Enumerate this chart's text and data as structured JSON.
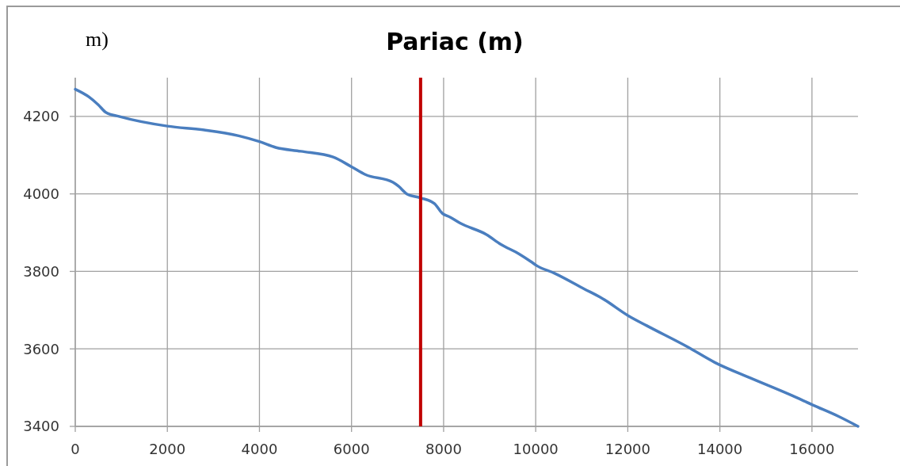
{
  "chart_data": {
    "type": "line",
    "title": "Pariac (m)",
    "annotations": [
      "m)"
    ],
    "x": [
      0,
      300,
      500,
      670,
      950,
      2000,
      2800,
      3550,
      4000,
      4350,
      4900,
      5600,
      6000,
      6300,
      6900,
      7020,
      7200,
      7490,
      7800,
      7970,
      8140,
      8350,
      8930,
      9240,
      9640,
      9900,
      10020,
      10410,
      11050,
      11450,
      12020,
      12410,
      13300,
      13890,
      14660,
      15560,
      16020,
      16590,
      17000
    ],
    "series": [
      {
        "color": "#4a7ebf",
        "values": [
          4270,
          4250,
          4230,
          4210,
          4200,
          4175,
          4165,
          4150,
          4135,
          4120,
          4110,
          4095,
          4070,
          4050,
          4030,
          4020,
          4000,
          3990,
          3975,
          3950,
          3940,
          3925,
          3895,
          3870,
          3845,
          3825,
          3815,
          3795,
          3755,
          3730,
          3685,
          3660,
          3605,
          3565,
          3525,
          3480,
          3455,
          3425,
          3400
        ]
      }
    ],
    "xlim": [
      0,
      17000
    ],
    "ylim": [
      3400,
      4300
    ],
    "xticks": [
      0,
      2000,
      4000,
      6000,
      8000,
      10000,
      12000,
      14000,
      16000
    ],
    "yticks": [
      3400,
      3600,
      3800,
      4000,
      4200
    ],
    "grid": true,
    "ref_lines": [
      {
        "axis": "x",
        "value": 7500,
        "color": "#c00000"
      }
    ]
  }
}
